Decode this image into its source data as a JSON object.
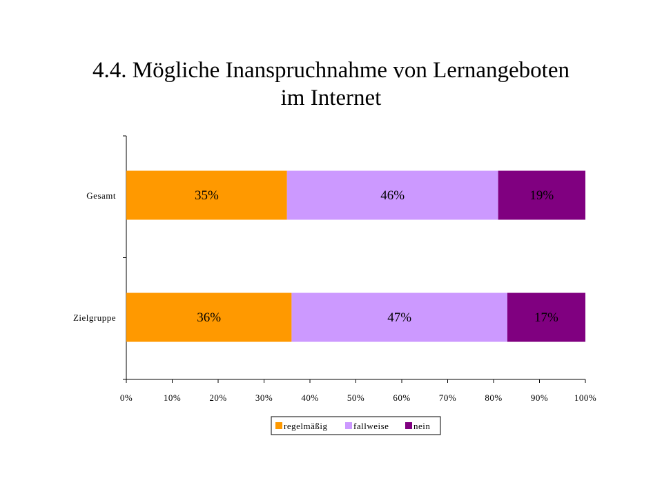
{
  "chart_data": {
    "type": "bar",
    "orientation": "horizontal",
    "stacked": true,
    "title": "4.4. Mögliche Inanspruchnahme von Lernangeboten im Internet",
    "title_lines": [
      "4.4. Mögliche Inanspruchnahme von Lernangeboten",
      "im Internet"
    ],
    "categories": [
      "Gesamt",
      "Zielgruppe"
    ],
    "series": [
      {
        "name": "regelmäßig",
        "color": "#ff9900",
        "values": [
          35,
          36
        ],
        "labels": [
          "35%",
          "36%"
        ]
      },
      {
        "name": "fallweise",
        "color": "#cc99ff",
        "values": [
          46,
          47
        ],
        "labels": [
          "46%",
          "47%"
        ]
      },
      {
        "name": "nein",
        "color": "#800080",
        "values": [
          19,
          17
        ],
        "labels": [
          "19%",
          "17%"
        ]
      }
    ],
    "xlim": [
      0,
      100
    ],
    "x_ticks": [
      0,
      10,
      20,
      30,
      40,
      50,
      60,
      70,
      80,
      90,
      100
    ],
    "x_tick_labels": [
      "0%",
      "10%",
      "20%",
      "30%",
      "40%",
      "50%",
      "60%",
      "70%",
      "80%",
      "90%",
      "100%"
    ],
    "xlabel": "",
    "ylabel": "",
    "grid": false,
    "legend": {
      "position": "bottom",
      "entries": [
        "regelmäßig",
        "fallweise",
        "nein"
      ]
    }
  }
}
